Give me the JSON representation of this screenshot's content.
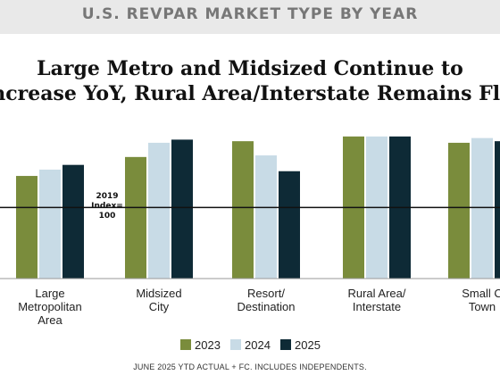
{
  "header": {
    "title": "U.S. REVPAR MARKET TYPE BY YEAR",
    "headline_line1": "Large Metro and Midsized Continue to",
    "headline_line2": "Increase YoY, Rural Area/Interstate Remains Flat"
  },
  "footer": {
    "note": "JUNE 2025 YTD ACTUAL + FC. INCLUDES INDEPENDENTS."
  },
  "colors": {
    "2023": "#7a8c3c",
    "2024": "#c8dbe6",
    "2025": "#0e2a36",
    "header_band": "#e9e9e9"
  },
  "chart_data": {
    "type": "bar",
    "categories": [
      "Large Metropolitan Area",
      "Midsized City",
      "Resort/ Destination",
      "Rural Area/ Interstate",
      "Small City/ Town"
    ],
    "category_lines": [
      [
        "Large",
        "Metropolitan",
        "Area"
      ],
      [
        "Midsized",
        "City"
      ],
      [
        "Resort/",
        "Destination"
      ],
      [
        "Rural Area/",
        "Interstate"
      ],
      [
        "Small C",
        "Town"
      ]
    ],
    "series": [
      {
        "name": "2023",
        "values": [
          120,
          132,
          142,
          145,
          141
        ]
      },
      {
        "name": "2024",
        "values": [
          124,
          141,
          133,
          145,
          144
        ]
      },
      {
        "name": "2025",
        "values": [
          127,
          143,
          123,
          145,
          142
        ]
      }
    ],
    "reference_line": {
      "value": 100,
      "label_lines": [
        "2019",
        "Index=",
        "100"
      ]
    },
    "ylim": [
      55,
      150
    ],
    "legend_position": "bottom-center",
    "grid": false
  }
}
